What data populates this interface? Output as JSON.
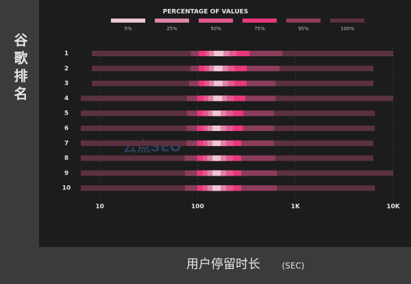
{
  "chart_data": {
    "type": "range-bar",
    "legend_title": "PERCENTAGE OF VALUES",
    "y_label": "谷歌排名",
    "x_label": "用户停留时长",
    "x_unit": "(SEC)",
    "watermark": "云点SEO",
    "log_x": true,
    "grid": true,
    "categories": [
      "1",
      "2",
      "3",
      "4",
      "5",
      "6",
      "7",
      "8",
      "9",
      "10"
    ],
    "xlim": [
      6,
      10000
    ],
    "xticks": [
      10,
      100,
      {
        "value": 1000,
        "label": "1K"
      },
      {
        "value": 10000,
        "label": "10K"
      }
    ],
    "series": [
      {
        "name": "5%",
        "color": "#efc6d6",
        "low": [
          147,
          147,
          147,
          145,
          142,
          142,
          142,
          142,
          142,
          142
        ],
        "high": [
          184,
          180,
          180,
          178,
          172,
          172,
          172,
          172,
          172,
          172
        ]
      },
      {
        "name": "25%",
        "color": "#dd86a8",
        "low": [
          131,
          131,
          131,
          128,
          128,
          126,
          126,
          126,
          126,
          126
        ],
        "high": [
          212,
          205,
          205,
          200,
          196,
          196,
          196,
          196,
          196,
          196
        ]
      },
      {
        "name": "50%",
        "color": "#e4588f",
        "low": [
          120,
          118,
          118,
          115,
          113,
          113,
          113,
          113,
          113,
          113
        ],
        "high": [
          250,
          240,
          240,
          235,
          230,
          230,
          230,
          230,
          230,
          230
        ]
      },
      {
        "name": "75%",
        "color": "#e8387c",
        "low": [
          103,
          103,
          103,
          99,
          99,
          99,
          99,
          99,
          99,
          99
        ],
        "high": [
          339,
          318,
          318,
          308,
          293,
          293,
          279,
          279,
          279,
          279
        ]
      },
      {
        "name": "95%",
        "color": "#8c3d5c",
        "low": [
          85,
          85,
          82,
          78,
          78,
          77,
          77,
          74,
          74,
          74
        ],
        "high": [
          735,
          690,
          625,
          625,
          605,
          605,
          605,
          625,
          645,
          645
        ]
      },
      {
        "name": "100%",
        "color": "#5b3140",
        "low": [
          8.3,
          8.3,
          8.3,
          6.4,
          6.4,
          6.4,
          6.4,
          6.4,
          6.4,
          6.4
        ],
        "high": [
          10000,
          6280,
          6280,
          10000,
          6490,
          6490,
          6280,
          6280,
          10000,
          6490
        ]
      }
    ]
  }
}
